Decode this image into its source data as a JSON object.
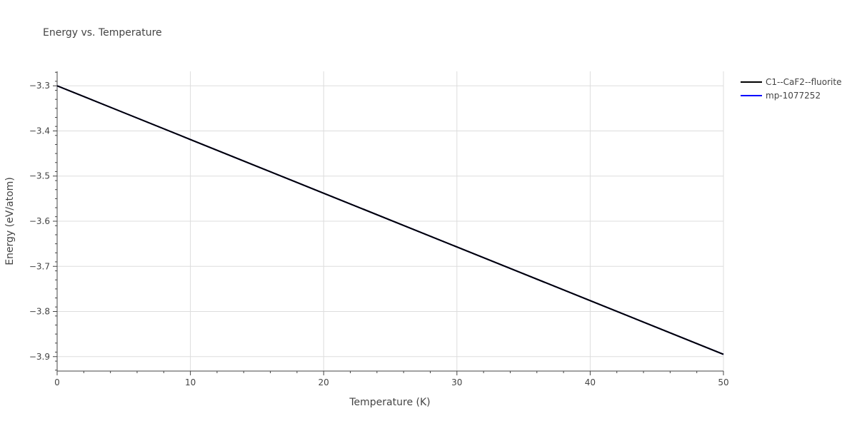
{
  "chart_data": {
    "type": "line",
    "title": "Energy vs. Temperature",
    "xlabel": "Temperature (K)",
    "ylabel": "Energy (eV/atom)",
    "xlim": [
      0,
      50
    ],
    "ylim": [
      -3.932,
      -3.268
    ],
    "x_ticks": [
      0,
      10,
      20,
      30,
      40,
      50
    ],
    "y_ticks": [
      -3.9,
      -3.8,
      -3.7,
      -3.6,
      -3.5,
      -3.4,
      -3.3
    ],
    "grid": true,
    "legend_position": "top-right",
    "series": [
      {
        "name": "C1--CaF2--fluorite",
        "color": "#000000",
        "x": [
          0,
          5,
          10,
          15,
          20,
          25,
          30,
          35,
          40,
          45,
          50
        ],
        "y": [
          -3.3,
          -3.3595,
          -3.419,
          -3.4785,
          -3.538,
          -3.5975,
          -3.657,
          -3.7165,
          -3.776,
          -3.8355,
          -3.895
        ]
      },
      {
        "name": "mp-1077252",
        "color": "#0000ff",
        "x": [
          0,
          5,
          10,
          15,
          20,
          25,
          30,
          35,
          40,
          45,
          50
        ],
        "y": [
          -3.3,
          -3.3595,
          -3.419,
          -3.4785,
          -3.538,
          -3.5975,
          -3.657,
          -3.7165,
          -3.776,
          -3.8355,
          -3.895
        ]
      }
    ]
  }
}
